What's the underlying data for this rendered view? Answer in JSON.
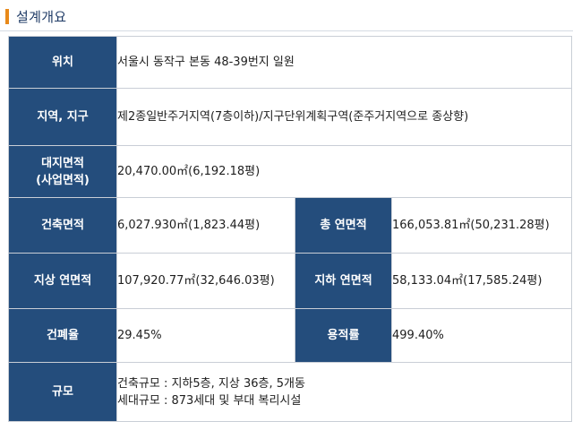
{
  "section": {
    "title": "설계개요",
    "accent_color": "#e8891a",
    "header_color": "#244d7c"
  },
  "rows": {
    "location": {
      "label": "위치",
      "value": "서울시 동작구 본동 48-39번지 일원"
    },
    "zone": {
      "label": "지역, 지구",
      "value": "제2종일반주거지역(7층이하)/지구단위계획구역(준주거지역으로 종상향)"
    },
    "site_area": {
      "label_line1": "대지면적",
      "label_line2": "(사업면적)",
      "value": "20,470.00㎡(6,192.18평)"
    },
    "building_area": {
      "label": "건축면적",
      "value": "6,027.930㎡(1,823.44평)"
    },
    "total_floor_area": {
      "label": "총 연면적",
      "value": "166,053.81㎡(50,231.28평)"
    },
    "above_ground_area": {
      "label": "지상 연면적",
      "value": "107,920.77㎡(32,646.03평)"
    },
    "underground_area": {
      "label": "지하 연면적",
      "value": "58,133.04㎡(17,585.24평)"
    },
    "coverage_ratio": {
      "label": "건폐율",
      "value": "29.45%"
    },
    "floor_area_ratio": {
      "label": "용적률",
      "value": "499.40%"
    },
    "scale": {
      "label": "규모",
      "line1": "건축규모 : 지하5층, 지상 36층, 5개동",
      "line2": "세대규모 : 873세대 및 부대 복리시설"
    }
  }
}
